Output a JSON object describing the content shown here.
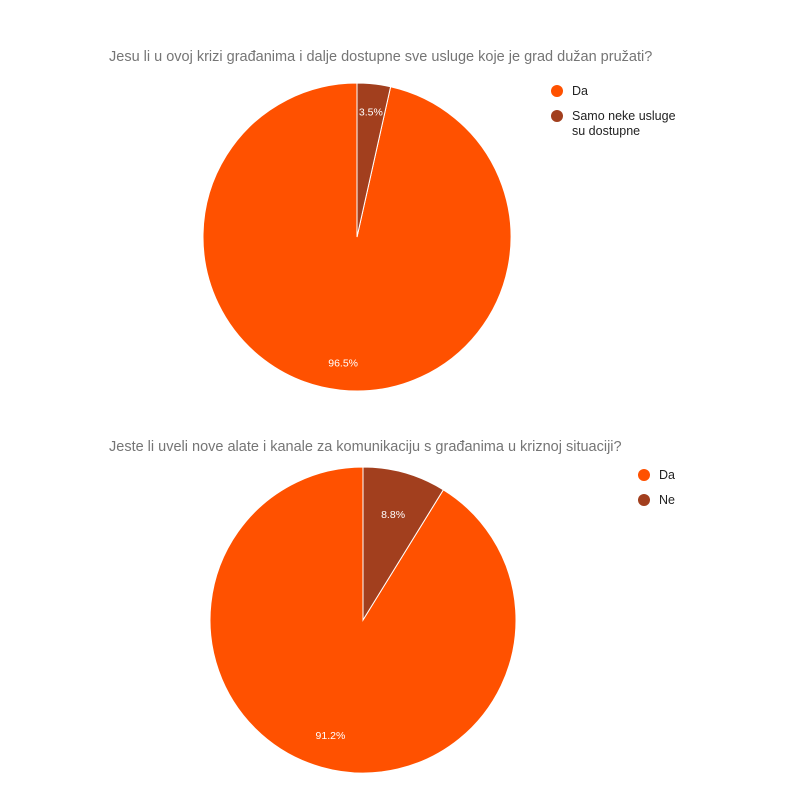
{
  "chart_data": [
    {
      "type": "pie",
      "title": "Jesu li u ovoj krizi građanima i dalje dostupne sve usluge koje je grad dužan pružati?",
      "categories": [
        "Da",
        "Samo neke usluge su dostupne"
      ],
      "values": [
        96.5,
        3.5
      ],
      "value_labels": [
        "96.5%",
        "3.5%"
      ],
      "colors": [
        "#FF5100",
        "#A23F1E"
      ],
      "legend_position": "top-right"
    },
    {
      "type": "pie",
      "title": "Jeste li uveli nove alate i kanale za komunikaciju s građanima u kriznoj situaciji?",
      "categories": [
        "Da",
        "Ne"
      ],
      "values": [
        91.2,
        8.8
      ],
      "value_labels": [
        "91.2%",
        "8.8%"
      ],
      "colors": [
        "#FF5100",
        "#A23F1E"
      ],
      "legend_position": "top-right"
    }
  ]
}
